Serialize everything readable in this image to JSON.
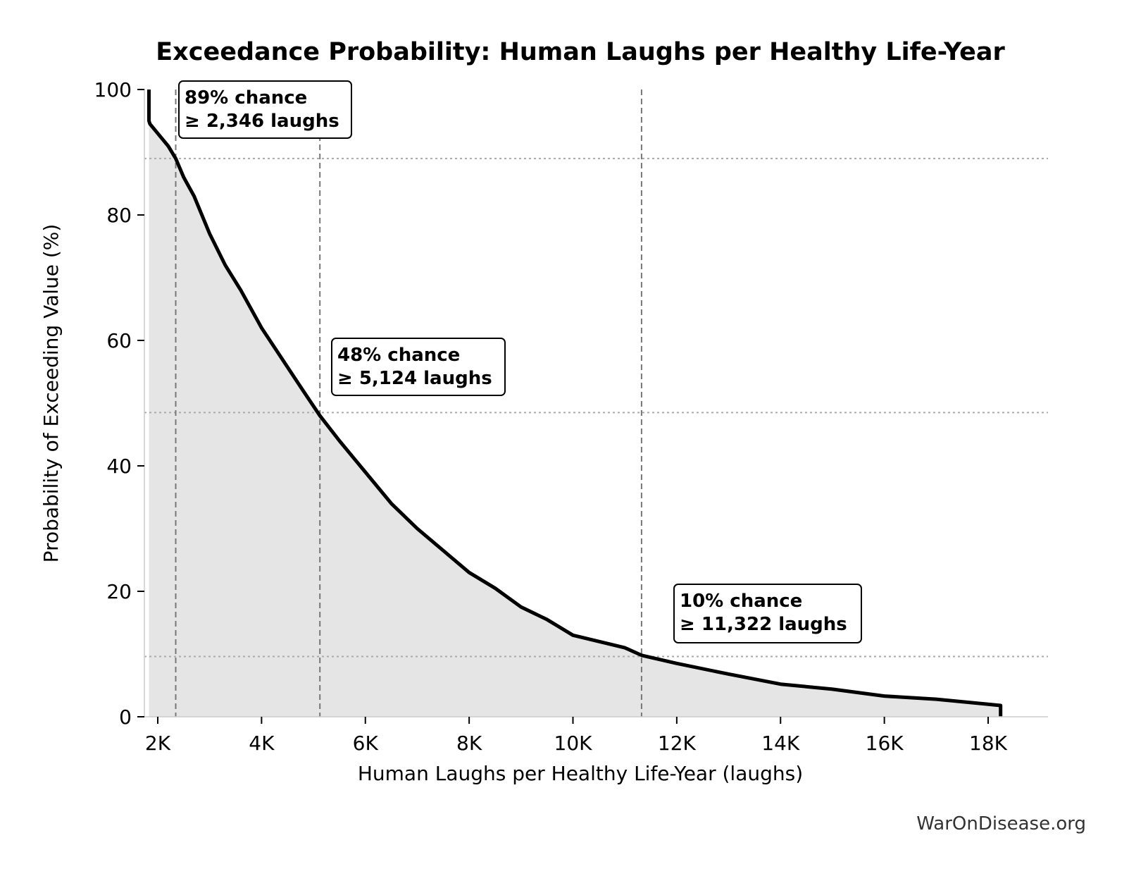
{
  "chart_data": {
    "type": "area",
    "title": "Exceedance Probability: Human Laughs per Healthy Life-Year",
    "xlabel": "Human Laughs per Healthy Life-Year (laughs)",
    "ylabel": "Probability of Exceeding Value (%)",
    "credit": "WarOnDisease.org",
    "xlim": [
      1800,
      19000
    ],
    "ylim": [
      0,
      100
    ],
    "xticks": [
      {
        "value": 2000,
        "label": "2K"
      },
      {
        "value": 4000,
        "label": "4K"
      },
      {
        "value": 6000,
        "label": "6K"
      },
      {
        "value": 8000,
        "label": "8K"
      },
      {
        "value": 10000,
        "label": "10K"
      },
      {
        "value": 12000,
        "label": "12K"
      },
      {
        "value": 14000,
        "label": "14K"
      },
      {
        "value": 16000,
        "label": "16K"
      },
      {
        "value": 18000,
        "label": "18K"
      }
    ],
    "yticks": [
      {
        "value": 0,
        "label": "0"
      },
      {
        "value": 20,
        "label": "20"
      },
      {
        "value": 40,
        "label": "40"
      },
      {
        "value": 60,
        "label": "60"
      },
      {
        "value": 80,
        "label": "80"
      },
      {
        "value": 100,
        "label": "100"
      }
    ],
    "grid": false,
    "series": [
      {
        "x": [
          1830,
          1830,
          1850,
          2000,
          2200,
          2346,
          2500,
          2700,
          3000,
          3300,
          3600,
          4000,
          4400,
          4800,
          5124,
          5500,
          6000,
          6500,
          7000,
          7500,
          8000,
          8500,
          9000,
          9500,
          10000,
          10500,
          11000,
          11322,
          12000,
          13000,
          14000,
          15000,
          16000,
          17000,
          18000,
          18240,
          18240
        ],
        "y": [
          100,
          95,
          94.5,
          93,
          91,
          89,
          86,
          83,
          77,
          72,
          68,
          62,
          57,
          52,
          48,
          44,
          39,
          34,
          30,
          26.5,
          23,
          20.5,
          17.5,
          15.5,
          13,
          12,
          11,
          9.8,
          8.5,
          6.8,
          5.2,
          4.4,
          3.3,
          2.8,
          2.0,
          1.8,
          0
        ]
      }
    ],
    "reference_lines": [
      {
        "x": 2346,
        "y": 89
      },
      {
        "x": 5124,
        "y": 48.5
      },
      {
        "x": 11322,
        "y": 9.6
      }
    ],
    "annotations": [
      {
        "line1": "89% chance",
        "line2": "≥ 2,346 laughs"
      },
      {
        "line1": "48% chance",
        "line2": "≥ 5,124 laughs"
      },
      {
        "line1": "10% chance",
        "line2": "≥ 11,322 laughs"
      }
    ],
    "colors": {
      "line": "#000000",
      "fill": "#e5e5e5",
      "ref_vertical": "#777777",
      "ref_horizontal": "#aaaaaa"
    }
  }
}
